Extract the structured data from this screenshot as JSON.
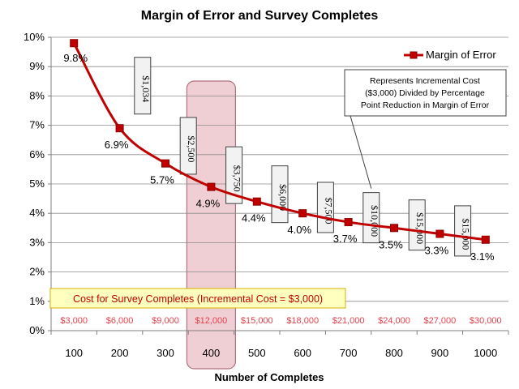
{
  "colors": {
    "series": "#c00000",
    "cost_text": "#e8404a",
    "highlight_fill": "#efcfd3",
    "highlight_stroke": "#b07080",
    "cost_note_fill": "#ffffc0",
    "cost_note_stroke": "#d8b000"
  },
  "chart_data": {
    "type": "line",
    "title": "Margin of Error and Survey Completes",
    "xlabel": "Number of Completes",
    "ylabel": "",
    "categories": [
      "100",
      "200",
      "300",
      "400",
      "500",
      "600",
      "700",
      "800",
      "900",
      "1000"
    ],
    "ylim": [
      0,
      10
    ],
    "y_ticks": [
      "0%",
      "1%",
      "2%",
      "3%",
      "4%",
      "5%",
      "6%",
      "7%",
      "8%",
      "9%",
      "10%"
    ],
    "grid": true,
    "legend_position": "top-right",
    "series": [
      {
        "name": "Margin of Error",
        "values": [
          9.8,
          6.9,
          5.7,
          4.9,
          4.4,
          4.0,
          3.7,
          3.5,
          3.3,
          3.1
        ],
        "labels": [
          "9.8%",
          "6.9%",
          "5.7%",
          "4.9%",
          "4.4%",
          "4.0%",
          "3.7%",
          "3.5%",
          "3.3%",
          "3.1%"
        ]
      }
    ],
    "costs": [
      "$3,000",
      "$6,000",
      "$9,000",
      "$12,000",
      "$15,000",
      "$18,000",
      "$21,000",
      "$24,000",
      "$27,000",
      "$30,000"
    ],
    "incremental_costs": [
      "$1,034",
      "$2,500",
      "$3,750",
      "$6,000",
      "$7,500",
      "$10,000",
      "$15,000",
      "$15,000"
    ],
    "highlighted_category": "400",
    "annotations": {
      "callout": [
        "Represents  Incremental Cost",
        "($3,000) Divided by Percentage",
        "Point Reduction in Margin of Error"
      ],
      "cost_note": "Cost for Survey Completes (Incremental Cost = $3,000)"
    }
  }
}
